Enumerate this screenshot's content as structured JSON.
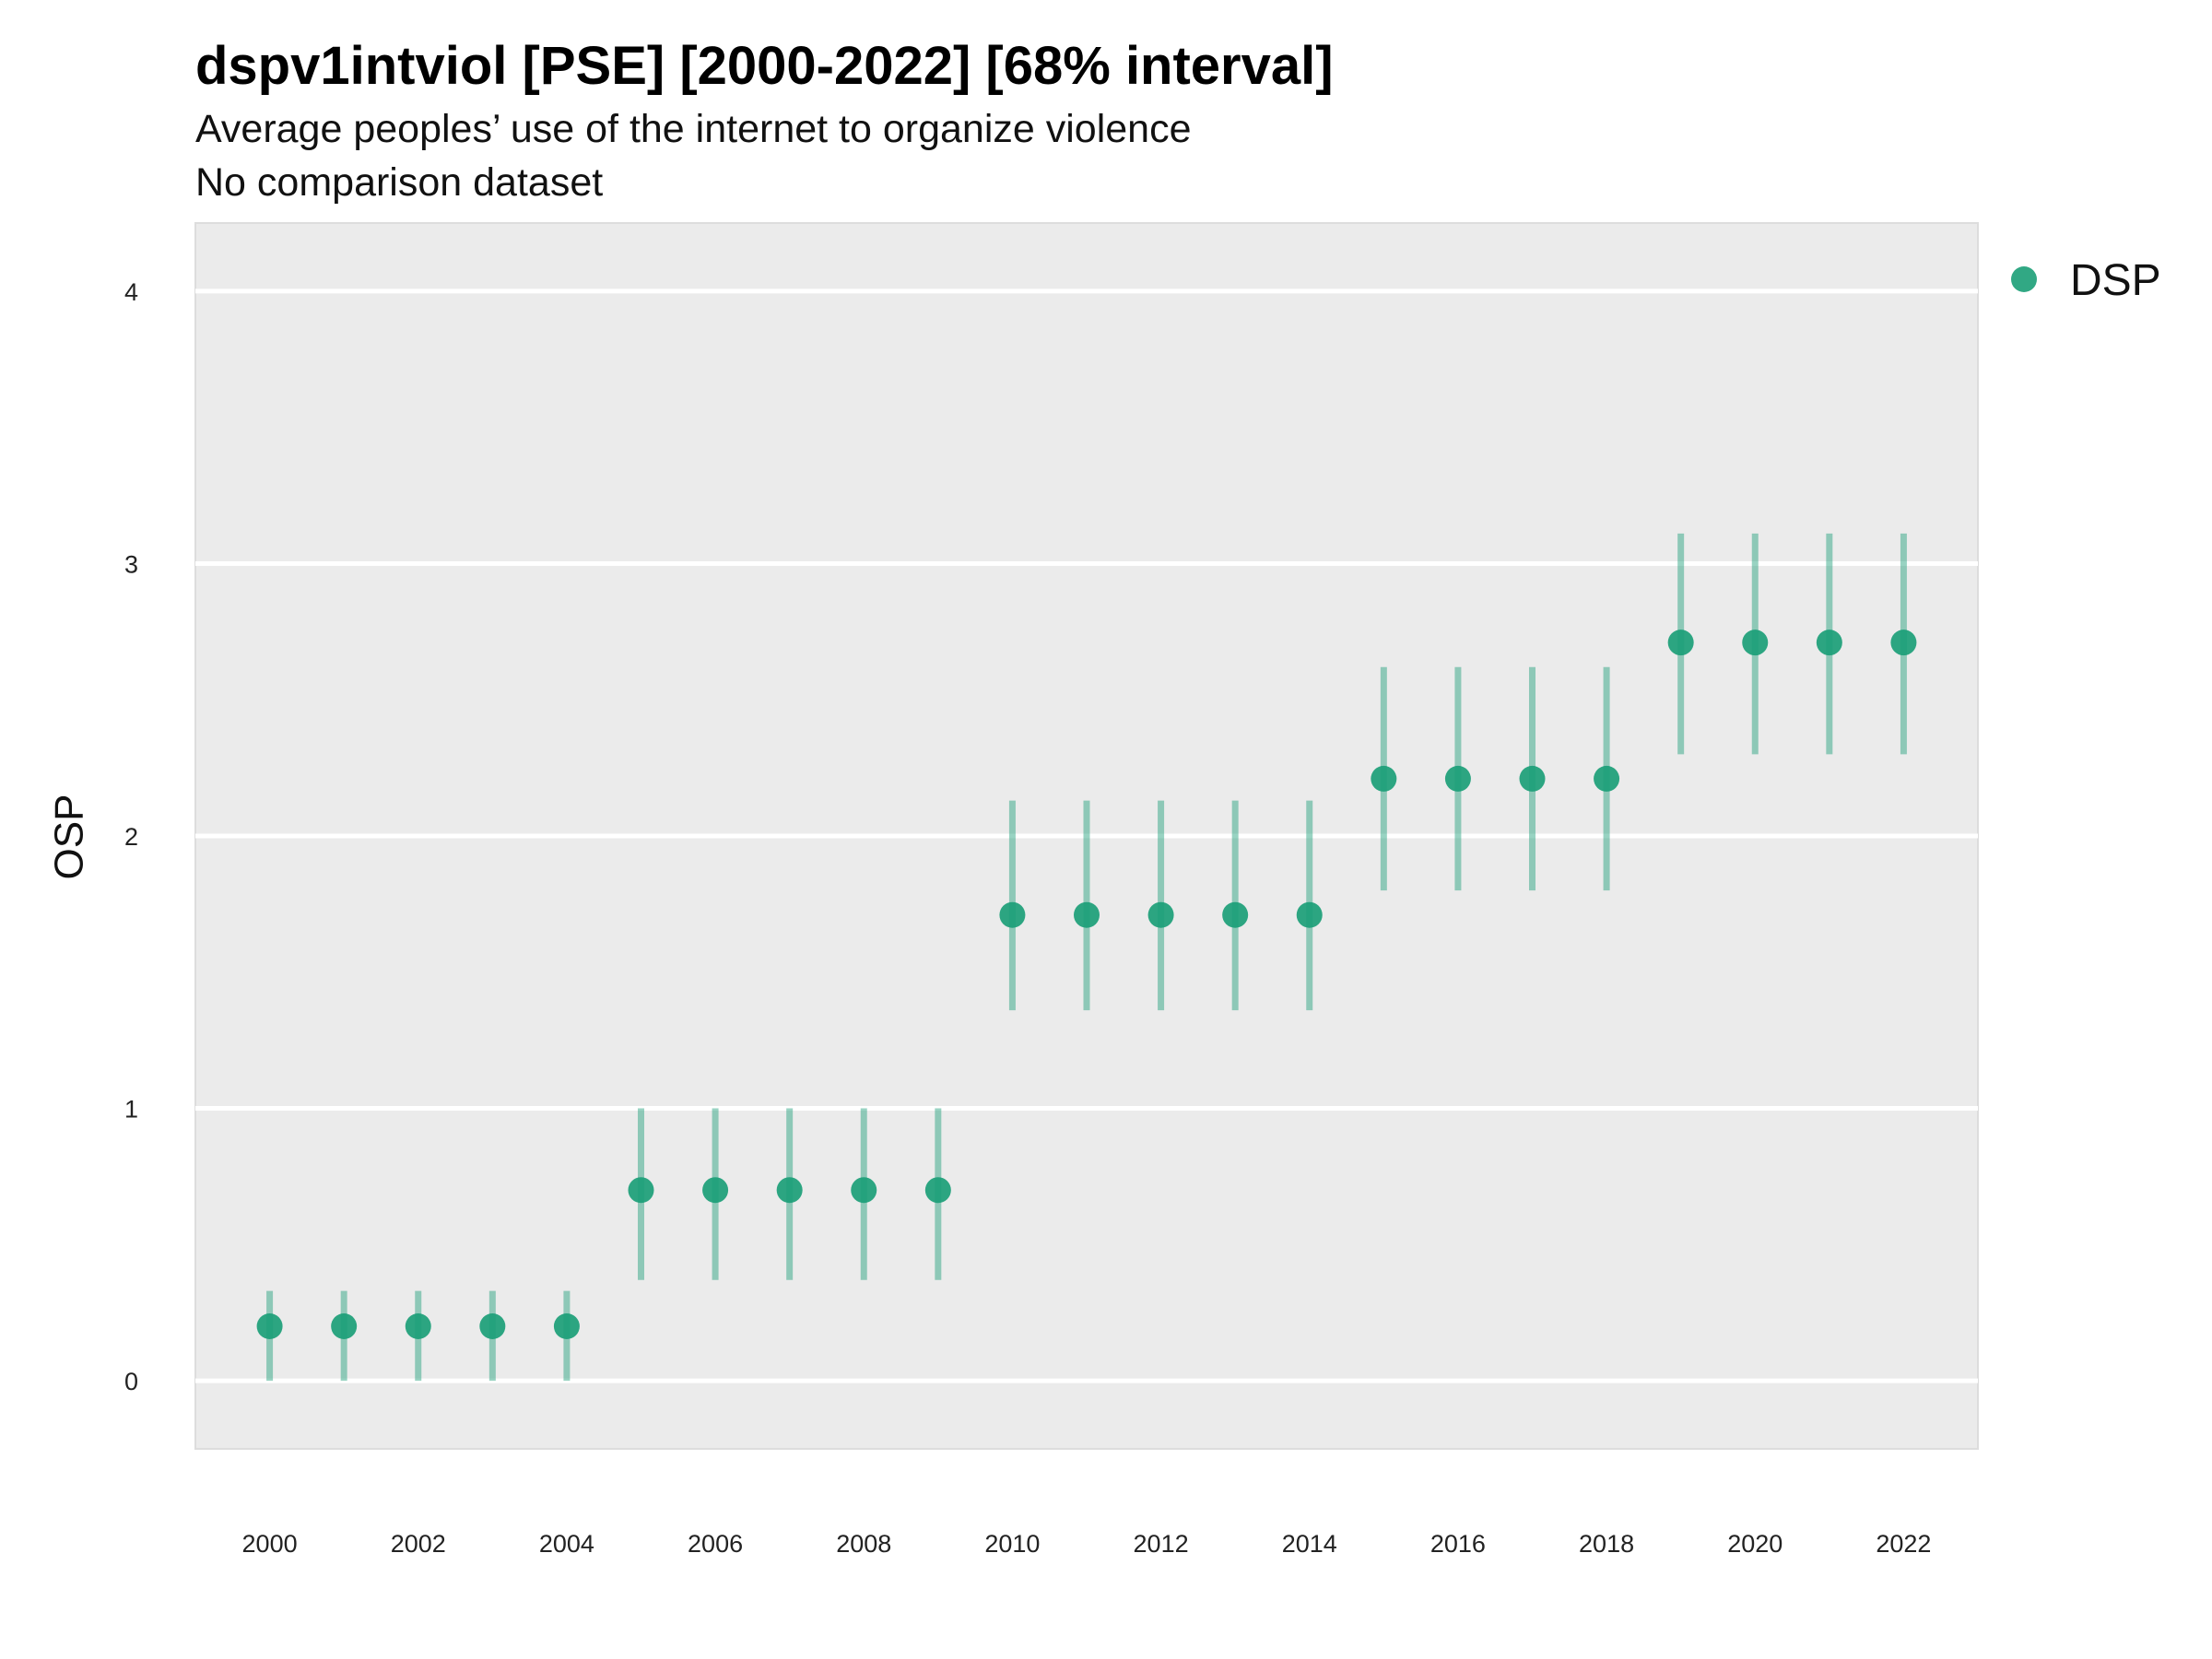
{
  "chart_data": {
    "type": "scatter",
    "title": "dspv1intviol [PSE] [2000-2022] [68% interval]",
    "subtitle": "Average peoples’ use of the internet to organize violence",
    "note": "No comparison dataset",
    "xlabel": "",
    "ylabel": "OSP",
    "x_ticks": [
      "2000",
      "2002",
      "2004",
      "2006",
      "2008",
      "2010",
      "2012",
      "2014",
      "2016",
      "2018",
      "2020",
      "2022"
    ],
    "y_ticks": [
      "0",
      "1",
      "2",
      "3",
      "4"
    ],
    "ylim": [
      -0.25,
      4.25
    ],
    "xlim": [
      1999,
      2023
    ],
    "grid": true,
    "legend_position": "right-top",
    "series": [
      {
        "name": "DSP",
        "color": "#1b9e77",
        "x": [
          2000,
          2001,
          2002,
          2003,
          2004,
          2005,
          2006,
          2007,
          2008,
          2009,
          2010,
          2011,
          2012,
          2013,
          2014,
          2015,
          2016,
          2017,
          2018,
          2019,
          2020,
          2021,
          2022
        ],
        "y": [
          0.2,
          0.2,
          0.2,
          0.2,
          0.2,
          0.7,
          0.7,
          0.7,
          0.7,
          0.7,
          1.71,
          1.71,
          1.71,
          1.71,
          1.71,
          2.21,
          2.21,
          2.21,
          2.21,
          2.71,
          2.71,
          2.71,
          2.71
        ],
        "lower": [
          0.0,
          0.0,
          0.0,
          0.0,
          0.0,
          0.37,
          0.37,
          0.37,
          0.37,
          0.37,
          1.36,
          1.36,
          1.36,
          1.36,
          1.36,
          1.8,
          1.8,
          1.8,
          1.8,
          2.3,
          2.3,
          2.3,
          2.3
        ],
        "upper": [
          0.33,
          0.33,
          0.33,
          0.33,
          0.33,
          1.0,
          1.0,
          1.0,
          1.0,
          1.0,
          2.13,
          2.13,
          2.13,
          2.13,
          2.13,
          2.62,
          2.62,
          2.62,
          2.62,
          3.11,
          3.11,
          3.11,
          3.11
        ]
      }
    ]
  }
}
